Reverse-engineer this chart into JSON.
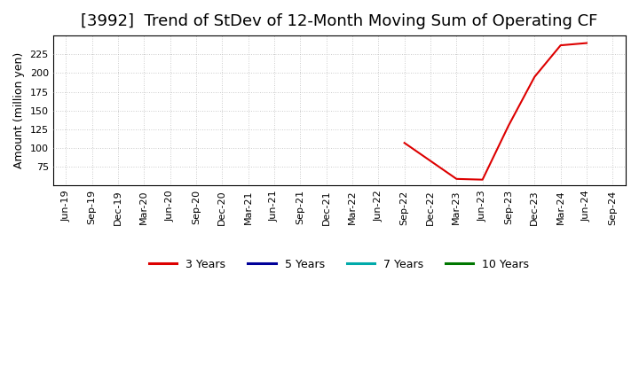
{
  "title": "[3992]  Trend of StDev of 12-Month Moving Sum of Operating CF",
  "ylabel": "Amount (million yen)",
  "background_color": "#ffffff",
  "grid_color": "#bbbbbb",
  "x_labels": [
    "Jun-19",
    "Sep-19",
    "Dec-19",
    "Mar-20",
    "Jun-20",
    "Sep-20",
    "Dec-20",
    "Mar-21",
    "Jun-21",
    "Sep-21",
    "Dec-21",
    "Mar-22",
    "Jun-22",
    "Sep-22",
    "Dec-22",
    "Mar-23",
    "Jun-23",
    "Sep-23",
    "Dec-23",
    "Mar-24",
    "Jun-24",
    "Sep-24"
  ],
  "series_3yr": {
    "label": "3 Years",
    "color": "#dd0000",
    "x_indices": [
      13,
      14,
      15,
      16,
      17,
      18,
      19,
      20
    ],
    "y_values": [
      107,
      83,
      59,
      58,
      130,
      195,
      237,
      240
    ]
  },
  "series_5yr": {
    "label": "5 Years",
    "color": "#000099",
    "x_indices": [],
    "y_values": []
  },
  "series_7yr": {
    "label": "7 Years",
    "color": "#00aaaa",
    "x_indices": [],
    "y_values": []
  },
  "series_10yr": {
    "label": "10 Years",
    "color": "#007700",
    "x_indices": [],
    "y_values": []
  },
  "ylim_min": 50,
  "ylim_max": 250,
  "yticks": [
    75,
    100,
    125,
    150,
    175,
    200,
    225
  ],
  "title_fontsize": 13,
  "ylabel_fontsize": 9,
  "tick_fontsize": 8,
  "legend_fontsize": 9
}
